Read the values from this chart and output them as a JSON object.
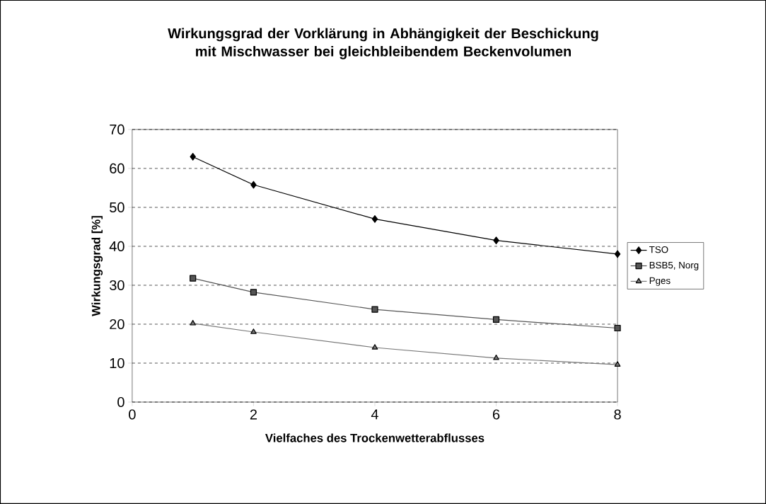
{
  "chart_data": {
    "type": "line",
    "title": "Wirkungsgrad der Vorklärung in Abhängigkeit der Beschickung mit Mischwasser bei gleichbleibendem Beckenvolumen",
    "xlabel": "Vielfaches des Trockenwetterabflusses",
    "ylabel": "Wirkungsgrad [%]",
    "x": [
      1,
      2,
      4,
      6,
      8
    ],
    "xlim": [
      0,
      8
    ],
    "xticks": [
      0,
      2,
      4,
      6,
      8
    ],
    "ylim": [
      0,
      70
    ],
    "yticks": [
      0,
      10,
      20,
      30,
      40,
      50,
      60,
      70
    ],
    "grid": "y",
    "legend": "right",
    "line_style": "solid",
    "series": [
      {
        "name": "TSO",
        "color": "#000000",
        "marker": "diamond",
        "values": [
          63,
          55.8,
          47,
          41.5,
          38
        ]
      },
      {
        "name": "BSB5, Norg",
        "color": "#555555",
        "marker": "square",
        "values": [
          31.8,
          28.2,
          23.8,
          21.2,
          19
        ]
      },
      {
        "name": "Pges",
        "color": "#777777",
        "marker": "triangle",
        "values": [
          20.2,
          18,
          14,
          11.3,
          9.6
        ]
      }
    ]
  }
}
